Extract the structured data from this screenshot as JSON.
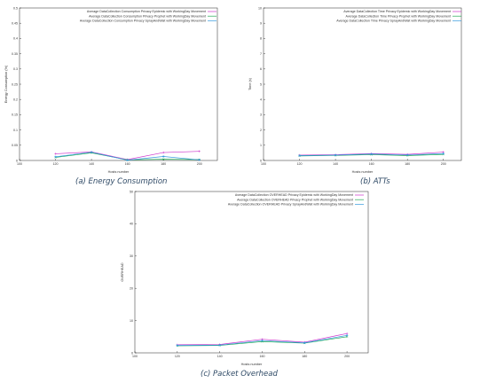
{
  "captions": [
    "(a) Energy Consumption",
    "(b) ATTs",
    "(c)  Packet Overhead"
  ],
  "colors": [
    "#cc33cc",
    "#22aa55",
    "#3399dd"
  ],
  "chart_data": [
    {
      "type": "line",
      "xlabel": "Hosts number",
      "ylabel": "Energy Consumption (%)",
      "x": [
        120,
        140,
        160,
        180,
        200
      ],
      "xticks": [
        100,
        120,
        140,
        160,
        180,
        200
      ],
      "xlim": [
        100,
        210
      ],
      "yticks": [
        "0",
        "0.05",
        "0.1",
        "0.15",
        "0.2",
        "0.25",
        "0.3",
        "0.35",
        "0.4",
        "0.45",
        "0.5"
      ],
      "ytick_values": [
        0,
        0.05,
        0.1,
        0.15,
        0.2,
        0.25,
        0.3,
        0.35,
        0.4,
        0.45,
        0.5
      ],
      "ylim": [
        0,
        0.5
      ],
      "series": [
        {
          "name": "Average DataCollection Consumption Privacy Epidemic with WorkingDay Movement",
          "values": [
            0.022,
            0.028,
            0.003,
            0.026,
            0.03
          ]
        },
        {
          "name": "Average DataCollection Consumption Privacy Prophet with WorkingDay Movement",
          "values": [
            0.01,
            0.025,
            0.002,
            0.004,
            0.003
          ]
        },
        {
          "name": "Average DataCollection Consumption Privacy SprayAndWait with WorkingDay Movement",
          "values": [
            0.012,
            0.027,
            0.001,
            0.013,
            0.002
          ]
        }
      ]
    },
    {
      "type": "line",
      "xlabel": "Hosts number",
      "ylabel": "Time (s)",
      "x": [
        120,
        140,
        160,
        180,
        200
      ],
      "xticks": [
        100,
        120,
        140,
        160,
        180,
        200
      ],
      "xlim": [
        100,
        210
      ],
      "yticks": [
        "0",
        "1",
        "2",
        "3",
        "4",
        "5",
        "6",
        "7",
        "8",
        "9",
        "10"
      ],
      "ytick_values": [
        0,
        1,
        2,
        3,
        4,
        5,
        6,
        7,
        8,
        9,
        10
      ],
      "ylim": [
        0,
        10
      ],
      "series": [
        {
          "name": "Average DataCollection Time Privacy Epidemic with WorkingDay Movement",
          "values": [
            0.35,
            0.38,
            0.45,
            0.4,
            0.55
          ]
        },
        {
          "name": "Average DataCollection Time Privacy Prophet with WorkingDay Movement",
          "values": [
            0.3,
            0.33,
            0.38,
            0.32,
            0.4
          ]
        },
        {
          "name": "Average DataCollection Time Privacy SprayAndWait with WorkingDay Movement",
          "values": [
            0.32,
            0.35,
            0.42,
            0.36,
            0.45
          ]
        }
      ]
    },
    {
      "type": "line",
      "xlabel": "Hosts number",
      "ylabel": "OVERHEAD",
      "x": [
        120,
        140,
        160,
        180,
        200
      ],
      "xticks": [
        100,
        120,
        140,
        160,
        180,
        200
      ],
      "xlim": [
        100,
        210
      ],
      "yticks": [
        "0",
        "10",
        "20",
        "30",
        "40",
        "50"
      ],
      "ytick_values": [
        0,
        10,
        20,
        30,
        40,
        50
      ],
      "ylim": [
        0,
        50
      ],
      "series": [
        {
          "name": "Average DataCollection OVERHEAD Privacy Epidemic with WorkingDay Movement",
          "values": [
            2.5,
            2.6,
            4.2,
            3.3,
            6.0
          ]
        },
        {
          "name": "Average DataCollection OVERHEAD Privacy Prophet with WorkingDay Movement",
          "values": [
            2.2,
            2.3,
            3.5,
            3.0,
            5.0
          ]
        },
        {
          "name": "Average DataCollection OVERHEAD Privacy SprayAndWait with WorkingDay Movement",
          "values": [
            2.3,
            2.4,
            3.8,
            3.1,
            5.4
          ]
        }
      ]
    }
  ]
}
